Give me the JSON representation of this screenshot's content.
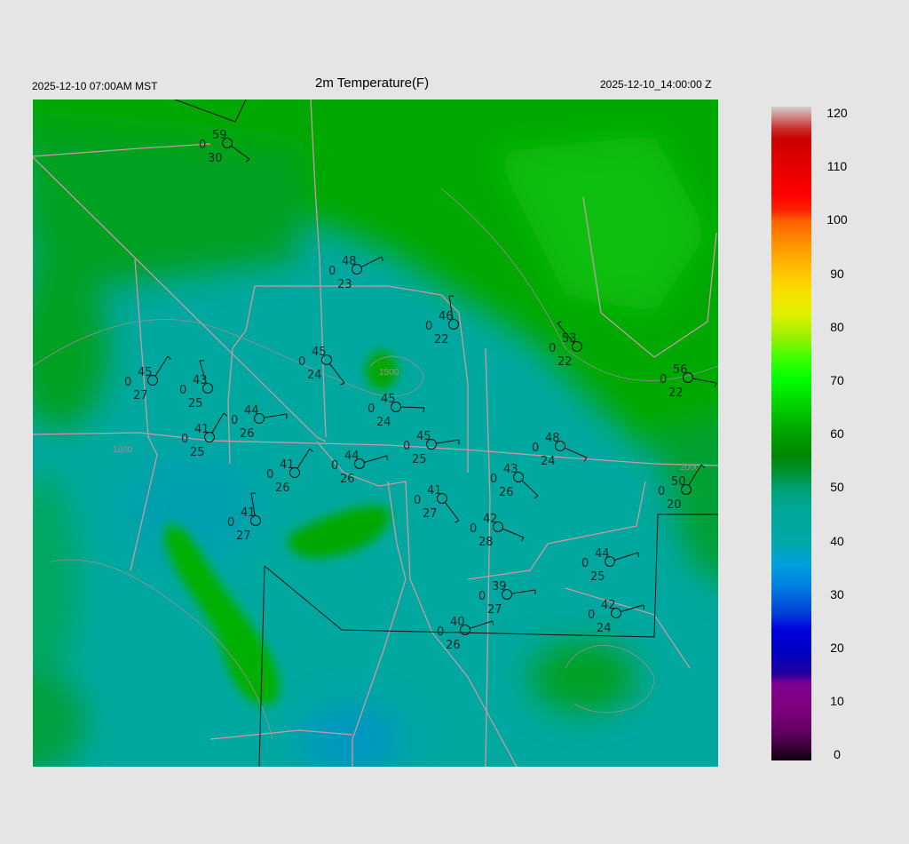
{
  "header": {
    "local_time": "2025-12-10 07:00AM MST",
    "title": "2m Temperature(F)",
    "utc_time": "2025-12-10_14:00:00 Z"
  },
  "colorbar": {
    "ticks": [
      "120",
      "110",
      "100",
      "90",
      "80",
      "70",
      "60",
      "50",
      "40",
      "30",
      "20",
      "10",
      "0"
    ],
    "range": [
      0,
      120
    ],
    "colors": [
      {
        "v": 0,
        "c": "#100010"
      },
      {
        "v": 5,
        "c": "#600060"
      },
      {
        "v": 10,
        "c": "#800080"
      },
      {
        "v": 14,
        "c": "#800090"
      },
      {
        "v": 16,
        "c": "#2000a0"
      },
      {
        "v": 20,
        "c": "#0000c0"
      },
      {
        "v": 24,
        "c": "#0000e0"
      },
      {
        "v": 27,
        "c": "#0040d8"
      },
      {
        "v": 32,
        "c": "#0080e0"
      },
      {
        "v": 36,
        "c": "#00a0e0"
      },
      {
        "v": 40,
        "c": "#00a8a8"
      },
      {
        "v": 46,
        "c": "#00a898"
      },
      {
        "v": 50,
        "c": "#00a070"
      },
      {
        "v": 53,
        "c": "#009030"
      },
      {
        "v": 56,
        "c": "#008800"
      },
      {
        "v": 60,
        "c": "#00a000"
      },
      {
        "v": 65,
        "c": "#00d000"
      },
      {
        "v": 70,
        "c": "#00ff00"
      },
      {
        "v": 74,
        "c": "#40ff00"
      },
      {
        "v": 78,
        "c": "#a0f000"
      },
      {
        "v": 82,
        "c": "#e0f000"
      },
      {
        "v": 86,
        "c": "#f8e000"
      },
      {
        "v": 90,
        "c": "#ffc000"
      },
      {
        "v": 95,
        "c": "#ff9000"
      },
      {
        "v": 99,
        "c": "#ff6000"
      },
      {
        "v": 101,
        "c": "#ff2000"
      },
      {
        "v": 104,
        "c": "#ff0000"
      },
      {
        "v": 110,
        "c": "#e00000"
      },
      {
        "v": 114,
        "c": "#cc0000"
      },
      {
        "v": 116,
        "c": "#cc3030"
      },
      {
        "v": 118,
        "c": "#d08080"
      },
      {
        "v": 120,
        "c": "#d0d0d0"
      }
    ]
  },
  "contour_labels": [
    "1000",
    "1500",
    "2000"
  ],
  "stations": [
    {
      "temp": "59",
      "pres": "0",
      "dew": "30"
    },
    {
      "temp": "48",
      "pres": "0",
      "dew": "23"
    },
    {
      "temp": "46",
      "pres": "0",
      "dew": "22"
    },
    {
      "temp": "53",
      "pres": "0",
      "dew": "22"
    },
    {
      "temp": "56",
      "pres": "0",
      "dew": "22"
    },
    {
      "temp": "45",
      "pres": "0",
      "dew": "27"
    },
    {
      "temp": "43",
      "pres": "0",
      "dew": "25"
    },
    {
      "temp": "45",
      "pres": "0",
      "dew": "24"
    },
    {
      "temp": "45",
      "pres": "0",
      "dew": "24"
    },
    {
      "temp": "44",
      "pres": "0",
      "dew": "26"
    },
    {
      "temp": "41",
      "pres": "0",
      "dew": "25"
    },
    {
      "temp": "45",
      "pres": "0",
      "dew": "25"
    },
    {
      "temp": "48",
      "pres": "0",
      "dew": "24"
    },
    {
      "temp": "41",
      "pres": "0",
      "dew": "26"
    },
    {
      "temp": "44",
      "pres": "0",
      "dew": "26"
    },
    {
      "temp": "43",
      "pres": "0",
      "dew": "26"
    },
    {
      "temp": "50",
      "pres": "0",
      "dew": "20"
    },
    {
      "temp": "41",
      "pres": "0",
      "dew": "27"
    },
    {
      "temp": "41",
      "pres": "0",
      "dew": "27"
    },
    {
      "temp": "42",
      "pres": "0",
      "dew": "28"
    },
    {
      "temp": "44",
      "pres": "0",
      "dew": "25"
    },
    {
      "temp": "39",
      "pres": "0",
      "dew": "27"
    },
    {
      "temp": "42",
      "pres": "0",
      "dew": "24"
    },
    {
      "temp": "40",
      "pres": "0",
      "dew": "26"
    }
  ]
}
